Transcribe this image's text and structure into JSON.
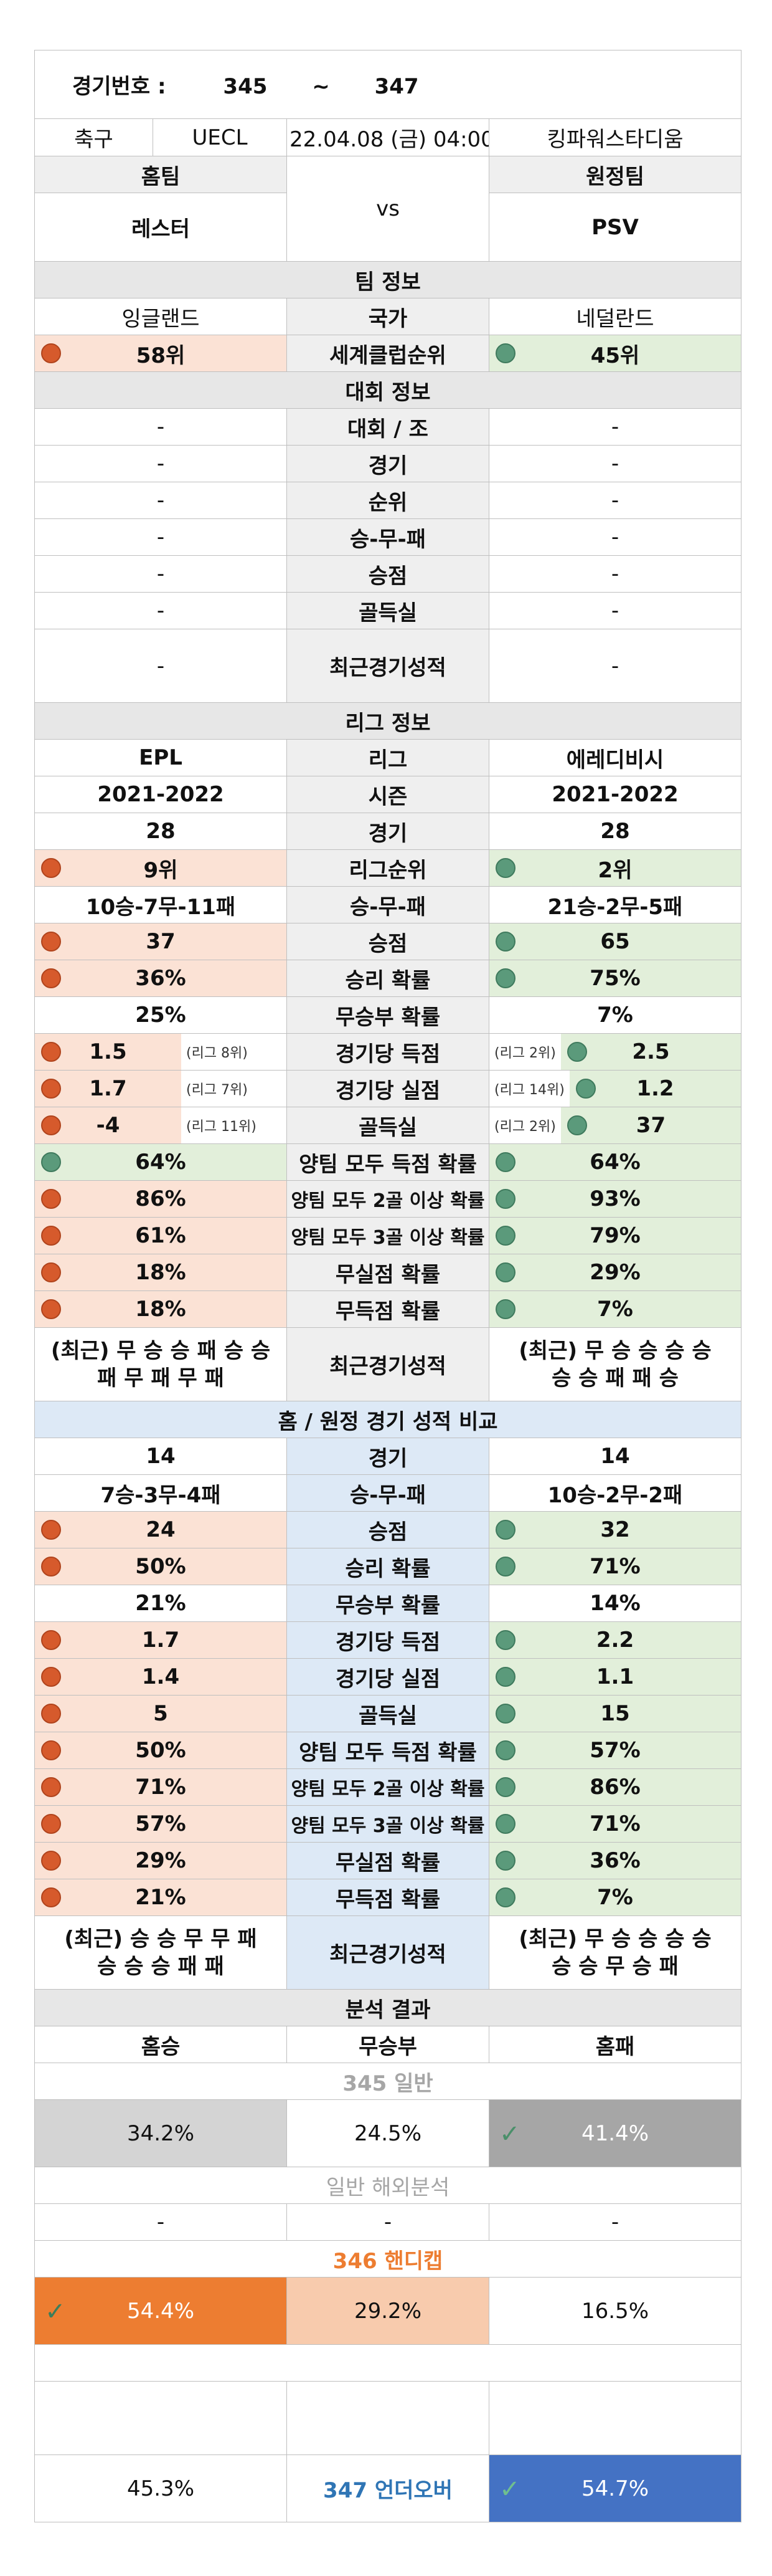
{
  "header": {
    "label": "경기번호 :",
    "range_from": "345",
    "tilde": "~",
    "range_to": "347"
  },
  "match": {
    "sport": "축구",
    "league": "UECL",
    "datetime": "22.04.08 (금) 04:00",
    "venue": "킹파워스타디움"
  },
  "teams": {
    "home_label": "홈팀",
    "away_label": "원정팀",
    "home": "레스터",
    "away": "PSV",
    "vs": "vs"
  },
  "team_info": {
    "title": "팀 정보",
    "country": {
      "home": "잉글랜드",
      "label": "국가",
      "away": "네덜란드"
    },
    "club_rank": {
      "home": "58위",
      "label": "세계클럽순위",
      "away": "45위"
    }
  },
  "tournament": {
    "title": "대회 정보",
    "rows": [
      {
        "home": "-",
        "label": "대회 / 조",
        "away": "-"
      },
      {
        "home": "-",
        "label": "경기",
        "away": "-"
      },
      {
        "home": "-",
        "label": "순위",
        "away": "-"
      },
      {
        "home": "-",
        "label": "승-무-패",
        "away": "-"
      },
      {
        "home": "-",
        "label": "승점",
        "away": "-"
      },
      {
        "home": "-",
        "label": "골득실",
        "away": "-"
      },
      {
        "home": "-",
        "label": "최근경기성적",
        "away": "-"
      }
    ]
  },
  "league": {
    "title": "리그 정보",
    "name": {
      "home": "EPL",
      "label": "리그",
      "away": "에레디비시"
    },
    "season": {
      "home": "2021-2022",
      "label": "시즌",
      "away": "2021-2022"
    },
    "games": {
      "home": "28",
      "label": "경기",
      "away": "28"
    },
    "rank": {
      "home": "9위",
      "label": "리그순위",
      "away": "2위"
    },
    "wdl": {
      "home": "10승-7무-11패",
      "label": "승-무-패",
      "away": "21승-2무-5패"
    },
    "points": {
      "home": "37",
      "label": "승점",
      "away": "65"
    },
    "win_rate": {
      "home": "36%",
      "label": "승리 확률",
      "away": "75%"
    },
    "draw_rate": {
      "home": "25%",
      "label": "무승부 확률",
      "away": "7%"
    },
    "goals_for": {
      "home": "1.5",
      "home_sub": "(리그 8위)",
      "label": "경기당 득점",
      "away": "2.5",
      "away_sub": "(리그 2위)"
    },
    "goals_against": {
      "home": "1.7",
      "home_sub": "(리그 7위)",
      "label": "경기당 실점",
      "away": "1.2",
      "away_sub": "(리그 14위)"
    },
    "goal_diff": {
      "home": "-4",
      "home_sub": "(리그 11위)",
      "label": "골득실",
      "away": "37",
      "away_sub": "(리그 2위)"
    },
    "btts": {
      "home": "64%",
      "label": "양팀 모두 득점 확률",
      "away": "64%"
    },
    "btts2": {
      "home": "86%",
      "label": "양팀 모두 2골 이상 확률",
      "away": "93%"
    },
    "btts3": {
      "home": "61%",
      "label": "양팀 모두 3골 이상 확률",
      "away": "79%"
    },
    "clean": {
      "home": "18%",
      "label": "무실점 확률",
      "away": "29%"
    },
    "fail": {
      "home": "18%",
      "label": "무득점 확률",
      "away": "7%"
    },
    "recent": {
      "home_1": "(최근) 무 승 승 패 승 승",
      "home_2": "패 무 패 무 패",
      "label": "최근경기성적",
      "away_1": "(최근) 무 승 승 승 승",
      "away_2": "승 승 패 패 승"
    }
  },
  "homeaway": {
    "title": "홈 / 원정 경기 성적 비교",
    "games": {
      "home": "14",
      "label": "경기",
      "away": "14"
    },
    "wdl": {
      "home": "7승-3무-4패",
      "label": "승-무-패",
      "away": "10승-2무-2패"
    },
    "points": {
      "home": "24",
      "label": "승점",
      "away": "32"
    },
    "win_rate": {
      "home": "50%",
      "label": "승리 확률",
      "away": "71%"
    },
    "draw_rate": {
      "home": "21%",
      "label": "무승부 확률",
      "away": "14%"
    },
    "goals_for": {
      "home": "1.7",
      "label": "경기당 득점",
      "away": "2.2"
    },
    "goals_against": {
      "home": "1.4",
      "label": "경기당 실점",
      "away": "1.1"
    },
    "goal_diff": {
      "home": "5",
      "label": "골득실",
      "away": "15"
    },
    "btts": {
      "home": "50%",
      "label": "양팀 모두 득점 확률",
      "away": "57%"
    },
    "btts2": {
      "home": "71%",
      "label": "양팀 모두 2골 이상 확률",
      "away": "86%"
    },
    "btts3": {
      "home": "57%",
      "label": "양팀 모두 3골 이상 확률",
      "away": "71%"
    },
    "clean": {
      "home": "29%",
      "label": "무실점 확률",
      "away": "36%"
    },
    "fail": {
      "home": "21%",
      "label": "무득점 확률",
      "away": "7%"
    },
    "recent": {
      "home_1": "(최근) 승 승 무 무 패",
      "home_2": "승 승 승 패 패",
      "label": "최근경기성적",
      "away_1": "(최근) 무 승 승 승 승",
      "away_2": "승 승 무 승 패"
    }
  },
  "analysis": {
    "title": "분석 결과",
    "cols": {
      "home": "홈승",
      "draw": "무승부",
      "away": "홈패"
    },
    "general_label": "345 일반",
    "general": {
      "home": "34.2%",
      "draw": "24.5%",
      "away": "41.4%"
    },
    "overseas_label": "일반 해외분석",
    "overseas": {
      "home": "-",
      "draw": "-",
      "away": "-"
    },
    "handicap_label": "346 핸디캡",
    "handicap": {
      "home": "54.4%",
      "draw": "29.2%",
      "away": "16.5%"
    },
    "underover_label": "347 언더오버",
    "underover": {
      "under": "45.3%",
      "over": "54.7%"
    }
  },
  "colors": {
    "home_dot": "#d65a2c",
    "away_dot": "#5b9a7b",
    "handicap_pick": "#ed7d31",
    "over_pick": "#4472c4",
    "check": "#4a8f6a"
  },
  "icons": {
    "dot": "circle-marker-icon",
    "check": "checkmark-icon"
  }
}
